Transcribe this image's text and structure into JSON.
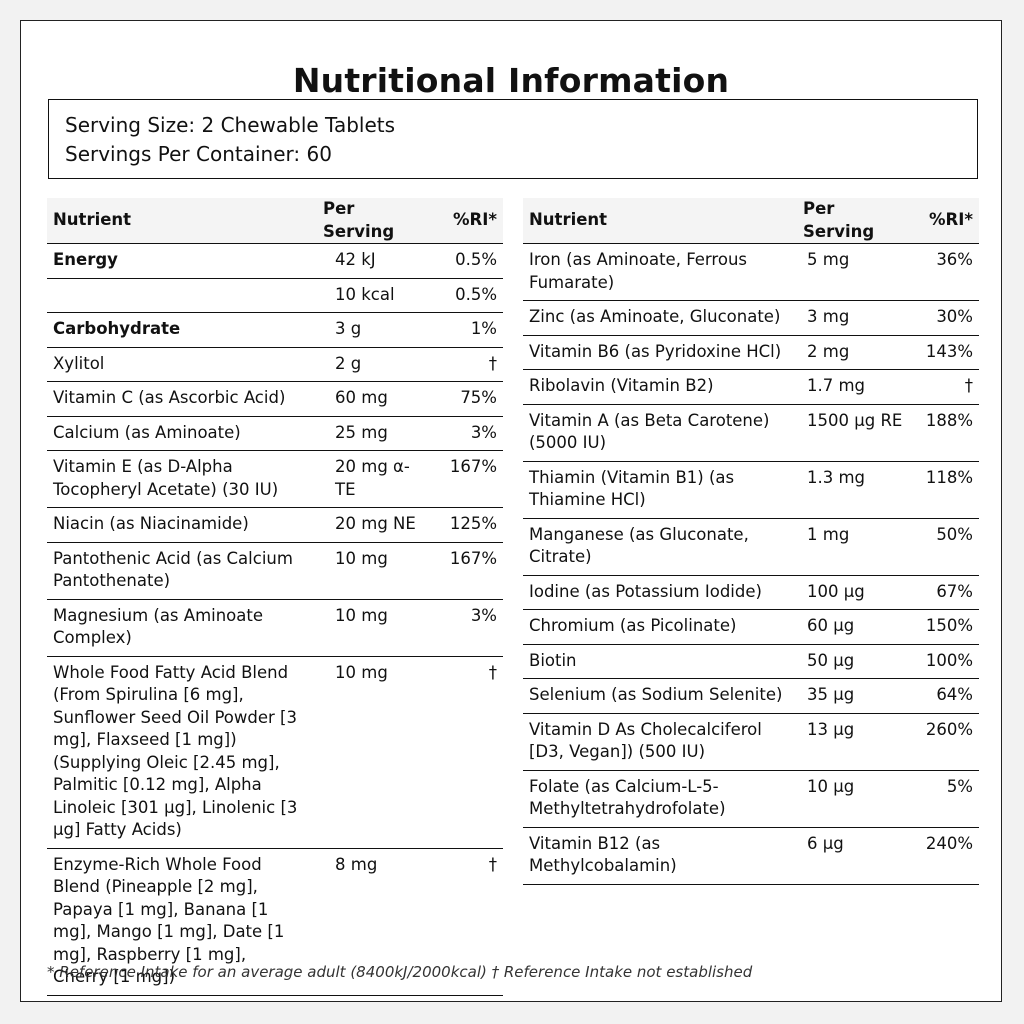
{
  "title": "Nutritional Information",
  "serving": {
    "size": "Serving Size: 2 Chewable Tablets",
    "per_container": "Servings Per Container: 60"
  },
  "headers": {
    "nutrient": "Nutrient",
    "per_serving": "Per Serving",
    "ri": "%RI*"
  },
  "left_rows": [
    {
      "name": "Energy",
      "amount": "42 kJ",
      "ri": "0.5%",
      "bold": true
    },
    {
      "name": "",
      "amount": "10 kcal",
      "ri": "0.5%"
    },
    {
      "name": "Carbohydrate",
      "amount": "3 g",
      "ri": "1%",
      "bold": true
    },
    {
      "name": "Xylitol",
      "amount": "2 g",
      "ri": "†"
    },
    {
      "name": "Vitamin C (as Ascorbic Acid)",
      "amount": "60 mg",
      "ri": "75%"
    },
    {
      "name": "Calcium (as Aminoate)",
      "amount": "25 mg",
      "ri": "3%"
    },
    {
      "name": "Vitamin E (as D-Alpha Tocopheryl Acetate) (30 IU)",
      "amount": "20 mg α-TE",
      "ri": "167%"
    },
    {
      "name": "Niacin (as Niacinamide)",
      "amount": "20 mg NE",
      "ri": "125%"
    },
    {
      "name": "Pantothenic Acid (as Calcium Pantothenate)",
      "amount": "10 mg",
      "ri": "167%"
    },
    {
      "name": "Magnesium (as Aminoate Complex)",
      "amount": "10 mg",
      "ri": "3%"
    },
    {
      "name": "Whole Food Fatty Acid Blend (From Spirulina [6 mg], Sunflower Seed Oil Powder [3 mg], Flaxseed [1 mg]) (Supplying Oleic [2.45 mg], Palmitic [0.12 mg], Alpha Linoleic [301 µg], Linolenic [3 µg] Fatty Acids)",
      "amount": "10 mg",
      "ri": "†"
    },
    {
      "name": "Enzyme-Rich Whole Food Blend (Pineapple [2 mg], Papaya [1 mg], Banana [1 mg], Mango [1 mg], Date [1 mg], Raspberry [1 mg], Cherry [1 mg])",
      "amount": "8 mg",
      "ri": "†"
    }
  ],
  "right_rows": [
    {
      "name": "Iron (as Aminoate, Ferrous Fumarate)",
      "amount": "5 mg",
      "ri": "36%"
    },
    {
      "name": "Zinc (as Aminoate, Gluconate)",
      "amount": "3 mg",
      "ri": "30%"
    },
    {
      "name": "Vitamin B6 (as Pyridoxine HCl)",
      "amount": "2 mg",
      "ri": "143%"
    },
    {
      "name": "Ribolavin (Vitamin B2)",
      "amount": "1.7 mg",
      "ri": "†"
    },
    {
      "name": "Vitamin A (as Beta Carotene) (5000 IU)",
      "amount": "1500 µg RE",
      "ri": "188%"
    },
    {
      "name": "Thiamin (Vitamin B1) (as Thiamine HCl)",
      "amount": "1.3 mg",
      "ri": "118%"
    },
    {
      "name": "Manganese (as Gluconate, Citrate)",
      "amount": "1 mg",
      "ri": "50%"
    },
    {
      "name": "Iodine (as Potassium Iodide)",
      "amount": "100 µg",
      "ri": "67%"
    },
    {
      "name": "Chromium (as Picolinate)",
      "amount": "60 µg",
      "ri": "150%"
    },
    {
      "name": "Biotin",
      "amount": "50 µg",
      "ri": "100%"
    },
    {
      "name": "Selenium (as Sodium Selenite)",
      "amount": "35 µg",
      "ri": "64%"
    },
    {
      "name": "Vitamin D As Cholecalciferol [D3, Vegan]) (500 IU)",
      "amount": "13 µg",
      "ri": "260%"
    },
    {
      "name": "Folate (as Calcium-L-5-Methyltetrahydrofolate)",
      "amount": "10 µg",
      "ri": "5%"
    },
    {
      "name": "Vitamin B12 (as Methylcobalamin)",
      "amount": "6 µg",
      "ri": "240%"
    }
  ],
  "footnote": "* Reference Intake for an average adult (8400kJ/2000kcal) † Reference Intake not established"
}
